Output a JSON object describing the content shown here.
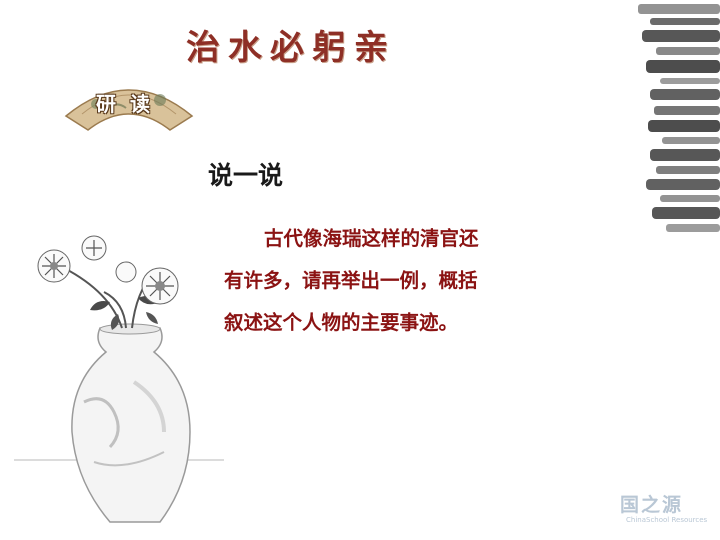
{
  "slide": {
    "title": "治水必躬亲",
    "section_badge": "研读",
    "heading": "说一说",
    "paragraph_lines": [
      "古代像海瑞这样的清官还",
      "有许多，请再举出一例，概括",
      "叙述这个人物的主要事迹。"
    ],
    "watermark": {
      "main": "国之源",
      "sub": "ChinaSchool Resources"
    }
  },
  "colors": {
    "title": "#8e2f26",
    "body_text": "#8b1313",
    "heading": "#1a1a1a",
    "watermark": "#b9c7d5"
  },
  "icons": {
    "fan": "fan-painting-icon",
    "vase": "flower-vase-illustration",
    "ink": "ink-brush-stroke-decoration"
  }
}
